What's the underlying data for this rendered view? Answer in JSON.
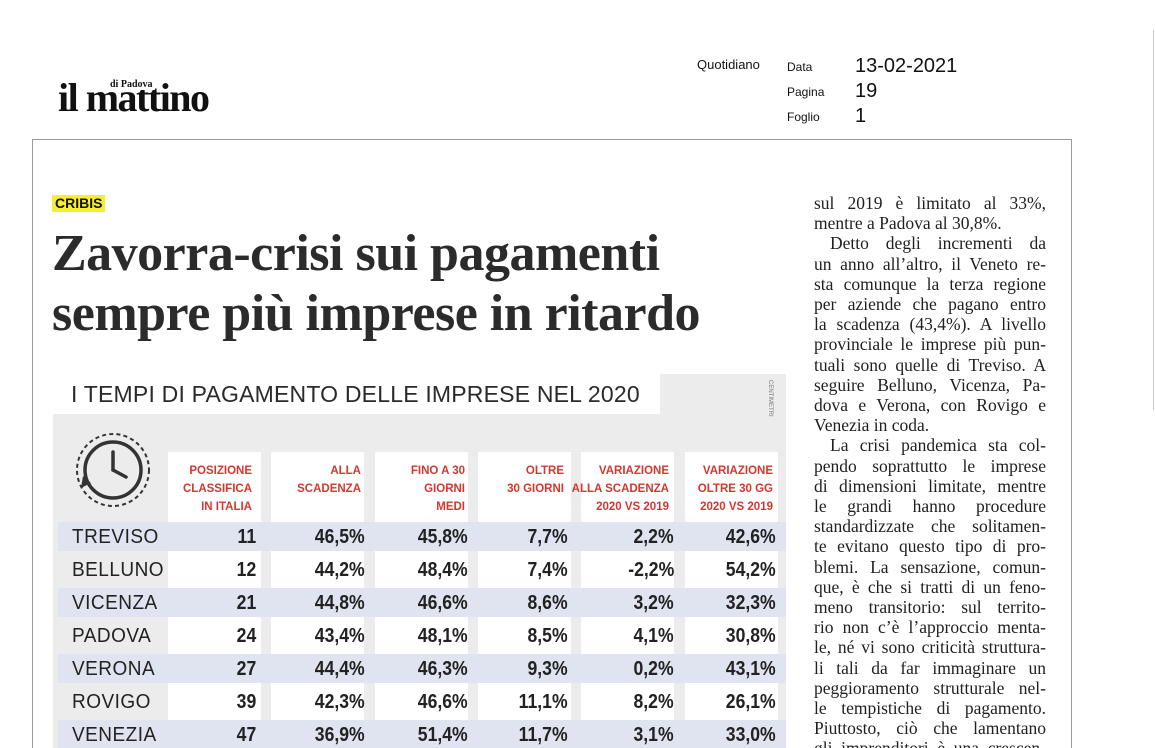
{
  "masthead": {
    "logo": "il mattino",
    "logo_sub": "di Padova"
  },
  "meta": {
    "type_label": "Quotidiano",
    "date_label": "Data",
    "date_value": "13-02-2021",
    "page_label": "Pagina",
    "page_value": "19",
    "sheet_label": "Foglio",
    "sheet_value": "1"
  },
  "article": {
    "kicker": "CRIBIS",
    "headline_line1": "Zavorra-crisi sui pagamenti",
    "headline_line2": "sempre più imprese in ritardo"
  },
  "infographic": {
    "title": "I TEMPI DI PAGAMENTO DELLE IMPRESE NEL 2020",
    "credit": "CENTIMETRI",
    "headers": [
      "POSIZIONE\nCLASSIFICA\nIN ITALIA",
      "ALLA\nSCADENZA",
      "FINO A 30\nGIORNI\nMEDI",
      "OLTRE\n30 GIORNI",
      "VARIAZIONE\nALLA SCADENZA\n2020 VS 2019",
      "VARIAZIONE\nOLTRE 30 GG\n2020 VS 2019"
    ],
    "rows": [
      {
        "name": "TREVISO",
        "rank": "11",
        "due": "46,5%",
        "upto30": "45,8%",
        "over30": "7,7%",
        "var_due": "2,2%",
        "var_over30": "42,6%"
      },
      {
        "name": "BELLUNO",
        "rank": "12",
        "due": "44,2%",
        "upto30": "48,4%",
        "over30": "7,4%",
        "var_due": "-2,2%",
        "var_over30": "54,2%"
      },
      {
        "name": "VICENZA",
        "rank": "21",
        "due": "44,8%",
        "upto30": "46,6%",
        "over30": "8,6%",
        "var_due": "3,2%",
        "var_over30": "32,3%"
      },
      {
        "name": "PADOVA",
        "rank": "24",
        "due": "43,4%",
        "upto30": "48,1%",
        "over30": "8,5%",
        "var_due": "4,1%",
        "var_over30": "30,8%"
      },
      {
        "name": "VERONA",
        "rank": "27",
        "due": "44,4%",
        "upto30": "46,3%",
        "over30": "9,3%",
        "var_due": "0,2%",
        "var_over30": "43,1%"
      },
      {
        "name": "ROVIGO",
        "rank": "39",
        "due": "42,3%",
        "upto30": "46,6%",
        "over30": "11,1%",
        "var_due": "8,2%",
        "var_over30": "26,1%"
      },
      {
        "name": "VENEZIA",
        "rank": "47",
        "due": "36,9%",
        "upto30": "51,4%",
        "over30": "11,7%",
        "var_due": "3,1%",
        "var_over30": "33,0%"
      }
    ]
  },
  "body_text": {
    "lines": [
      "sul 2019 è limitato al 33%,",
      "mentre a Padova al 30,8%.",
      "Detto degli incrementi da",
      "un anno all’altro, il Veneto re-",
      "sta comunque la terza regione",
      "per aziende che pagano entro",
      "la scadenza (43,4%). A livello",
      "provinciale le imprese più pun-",
      "tuali sono quelle di Treviso. A",
      "seguire Belluno, Vicenza, Pa-",
      "dova e Verona, con Rovigo e",
      "Venezia in coda.",
      "La crisi pandemica sta col-",
      "pendo soprattutto le imprese",
      "di dimensioni limitate, mentre",
      "le grandi hanno procedure",
      "standardizzate che solitamen-",
      "te evitano questo tipo di pro-",
      "blemi. La sensazione, comun-",
      "que, è che si tratti di un feno-",
      "meno transitorio: sul territo-",
      "rio non c’è l’approccio menta-",
      "le, né vi sono criticità struttura-",
      "li tali da far immaginare un",
      "peggioramento strutturale nel-",
      "le tempistiche di pagamento.",
      "Piuttosto, ciò che lamentano",
      "gli imprenditori è una crescen-"
    ]
  }
}
